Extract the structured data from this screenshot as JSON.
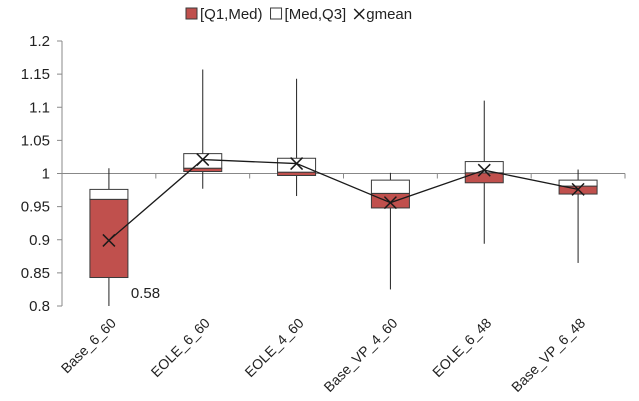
{
  "chart_data": {
    "type": "box",
    "title": "",
    "xlabel": "",
    "ylabel": "",
    "ylim": [
      0.8,
      1.2
    ],
    "yticks": [
      "0.8",
      "0.85",
      "0.9",
      "0.95",
      "1",
      "1.05",
      "1.1",
      "1.15",
      "1.2"
    ],
    "grid": false,
    "legend_position": "top-center",
    "categories": [
      "Base_6_60",
      "EOLE_6_60",
      "EOLE_4_60",
      "Base_VP_4_60",
      "EOLE_6_48",
      "Base_VP_6_48"
    ],
    "legend": {
      "lower_box": "[Q1,Med)",
      "upper_box": "[Med,Q3]",
      "gmean": "gmean"
    },
    "series": {
      "q1": [
        0.843,
        1.003,
        0.997,
        0.948,
        0.986,
        0.969
      ],
      "median": [
        0.961,
        1.008,
        1.002,
        0.97,
        1.001,
        0.981
      ],
      "q3": [
        0.976,
        1.03,
        1.023,
        0.99,
        1.018,
        0.99
      ],
      "min": [
        0.58,
        0.977,
        0.966,
        0.825,
        0.894,
        0.865
      ],
      "max": [
        1.008,
        1.157,
        1.143,
        1.001,
        1.11,
        1.006
      ],
      "gmean": [
        0.899,
        1.021,
        1.015,
        0.956,
        1.005,
        0.976
      ]
    },
    "annotations": [
      {
        "category": "Base_6_60",
        "text": "0.58"
      }
    ],
    "colors": {
      "lower_box": "#c0504d",
      "upper_box": "#ffffff",
      "box_stroke": "#3a3a3a",
      "line": "#1a1a1a",
      "axis": "#888888"
    }
  }
}
